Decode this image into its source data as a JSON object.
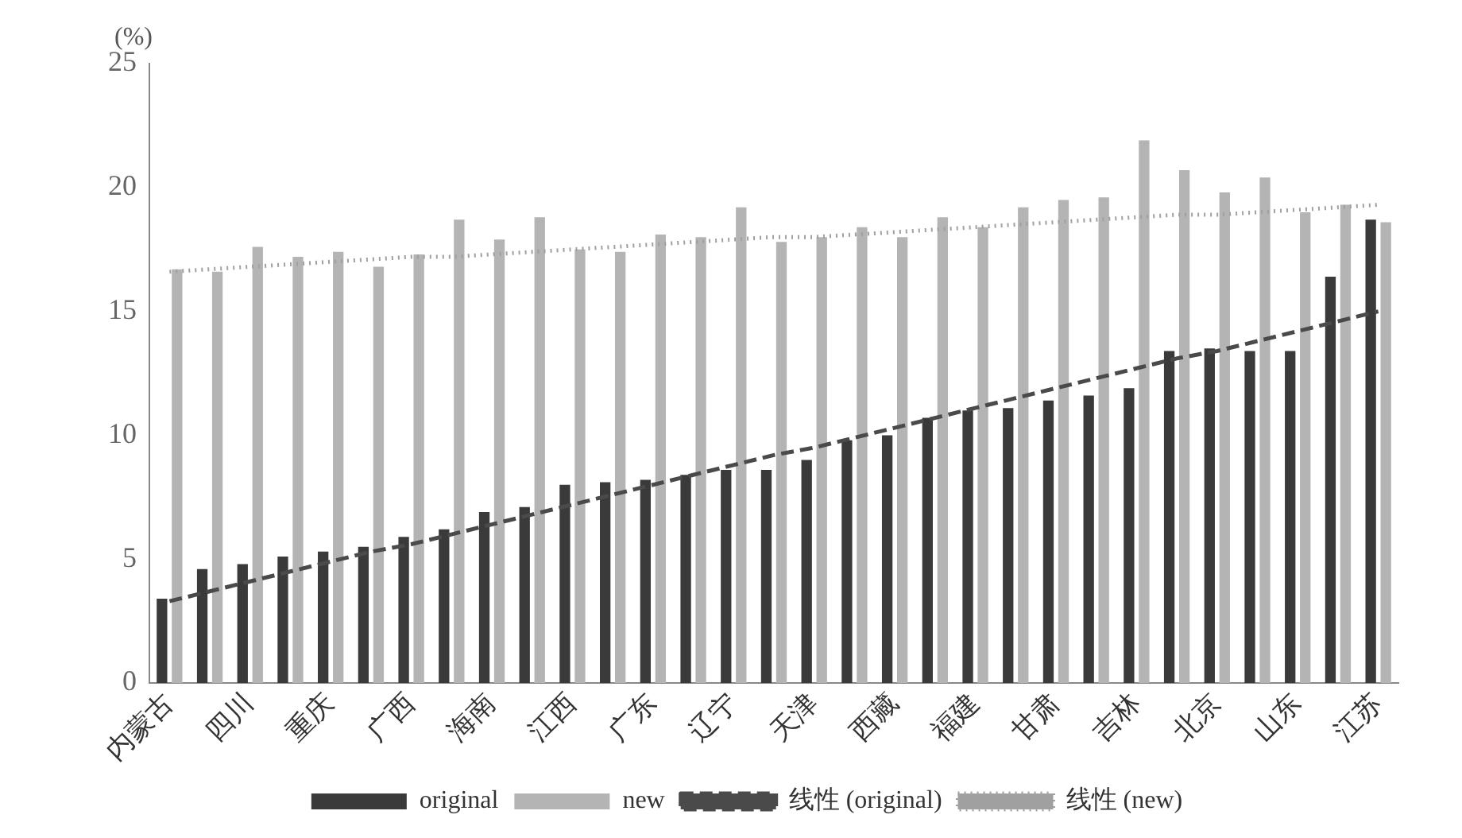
{
  "chart_data": {
    "type": "bar",
    "ylabel": "(%)",
    "categories": [
      "内蒙古",
      null,
      "四川",
      null,
      "重庆",
      null,
      "广西",
      null,
      "海南",
      null,
      "江西",
      null,
      "广东",
      null,
      "辽宁",
      null,
      "天津",
      null,
      "西藏",
      null,
      "福建",
      null,
      "甘肃",
      null,
      "吉林",
      null,
      "北京",
      null,
      "山东",
      null,
      "江苏"
    ],
    "series": [
      {
        "name": "original",
        "color": "#3a3a3a",
        "values": [
          3.4,
          4.6,
          4.8,
          5.1,
          5.3,
          5.5,
          5.9,
          6.2,
          6.9,
          7.1,
          8.0,
          8.1,
          8.2,
          8.4,
          8.6,
          8.6,
          9.0,
          9.8,
          10.0,
          10.7,
          11.0,
          11.1,
          11.4,
          11.6,
          11.9,
          13.4,
          13.5,
          13.4,
          13.4,
          16.4,
          18.7
        ]
      },
      {
        "name": "new",
        "color": "#b4b4b4",
        "values": [
          16.7,
          16.6,
          17.6,
          17.2,
          17.4,
          16.8,
          17.3,
          18.7,
          17.9,
          18.8,
          17.5,
          17.4,
          18.1,
          18.0,
          19.2,
          17.8,
          18.0,
          18.4,
          18.0,
          18.8,
          18.4,
          19.2,
          19.5,
          19.6,
          21.9,
          20.7,
          19.8,
          20.4,
          19.0,
          19.3,
          18.6
        ]
      },
      {
        "name": "线性 (original)",
        "type": "line",
        "line_style": "dashed",
        "color": "#4a4a4a",
        "values": [
          3.3,
          3.7,
          4.1,
          4.5,
          4.9,
          5.3,
          5.6,
          6.0,
          6.4,
          6.8,
          7.2,
          7.6,
          8.0,
          8.4,
          8.8,
          9.2,
          9.5,
          9.9,
          10.3,
          10.7,
          11.1,
          11.5,
          11.9,
          12.3,
          12.7,
          13.1,
          13.4,
          13.8,
          14.2,
          14.6,
          15.0
        ]
      },
      {
        "name": "线性 (new)",
        "type": "line",
        "line_style": "dotted",
        "color": "#a0a0a0",
        "values": [
          16.6,
          16.7,
          16.8,
          16.9,
          17.0,
          17.1,
          17.2,
          17.2,
          17.3,
          17.4,
          17.5,
          17.6,
          17.7,
          17.8,
          17.9,
          18.0,
          18.0,
          18.1,
          18.2,
          18.3,
          18.4,
          18.5,
          18.6,
          18.7,
          18.8,
          18.9,
          18.9,
          19.0,
          19.1,
          19.2,
          19.3
        ]
      }
    ],
    "ylim": [
      0,
      25
    ],
    "yticks": [
      0,
      5,
      10,
      15,
      20,
      25
    ],
    "grid": false,
    "legend": "bottom",
    "marker": "none"
  }
}
